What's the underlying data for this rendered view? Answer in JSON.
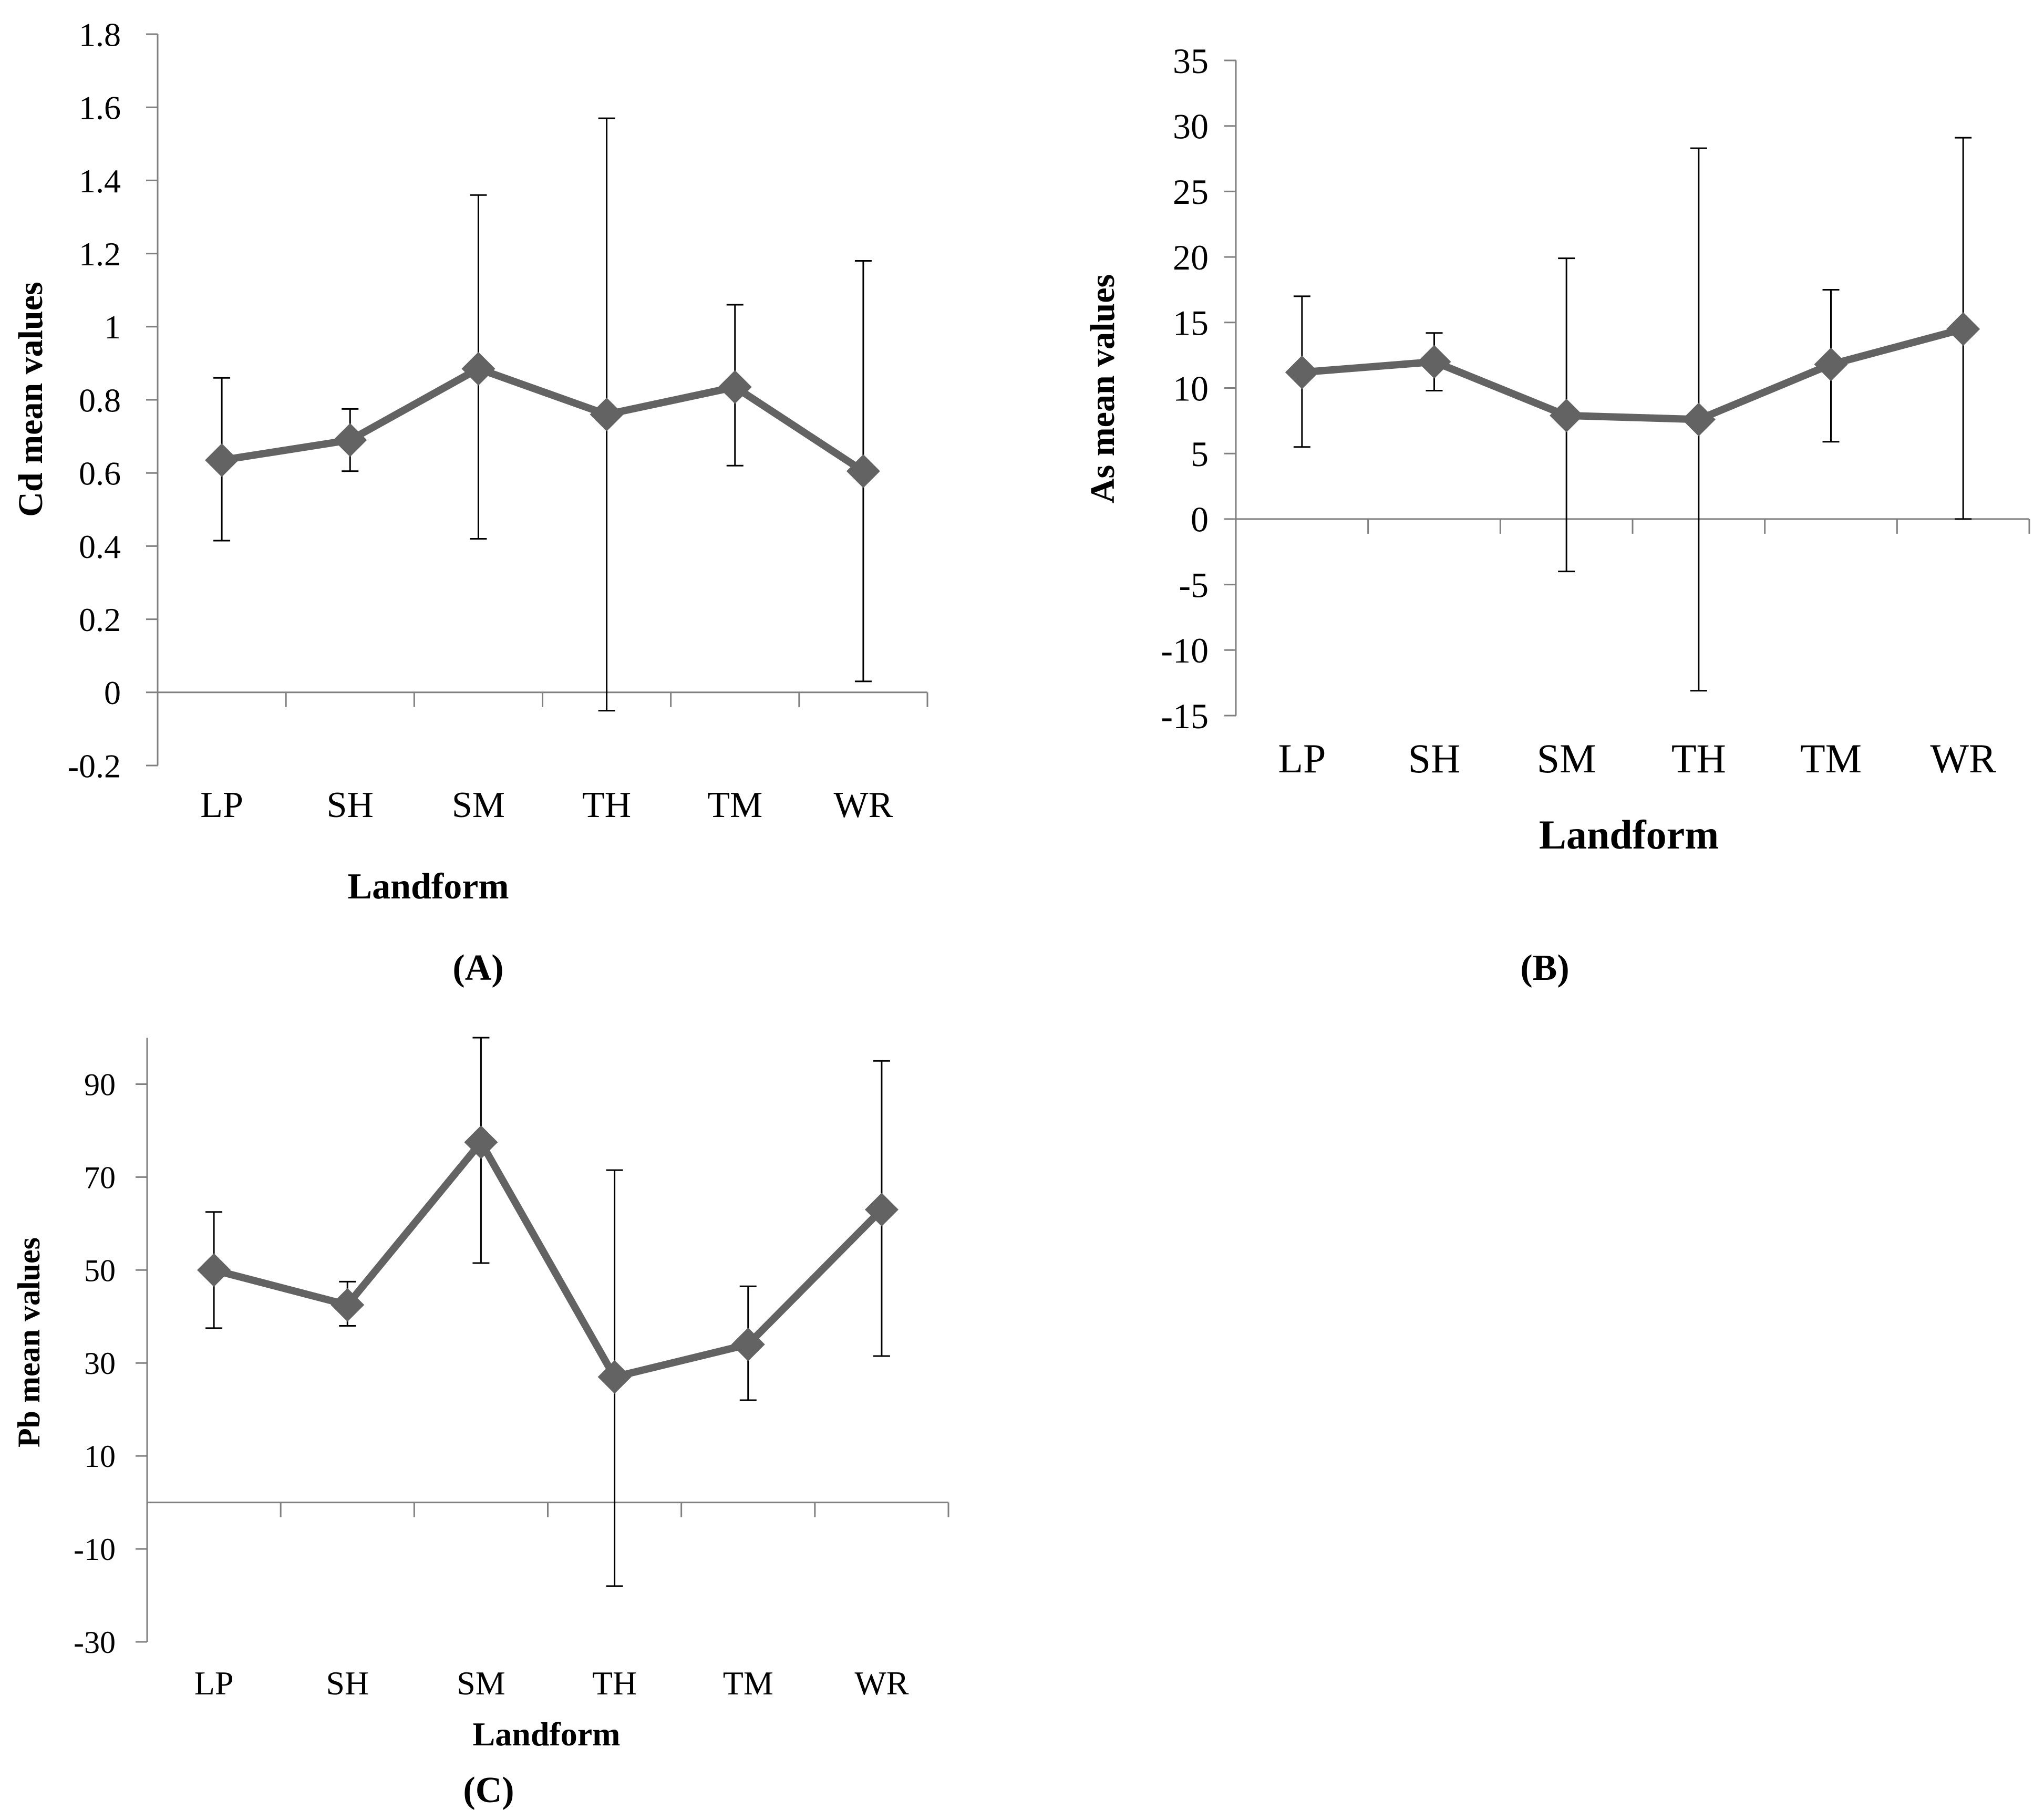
{
  "colors": {
    "series": "#636363",
    "axis": "#808080",
    "errorbar": "#000000",
    "text": "#000000"
  },
  "chart_data": [
    {
      "id": "A",
      "panel_label": "(A)",
      "type": "line",
      "categories": [
        "LP",
        "SH",
        "SM",
        "TH",
        "TM",
        "WR"
      ],
      "values": [
        0.635,
        0.69,
        0.885,
        0.76,
        0.835,
        0.605
      ],
      "error_low": [
        0.415,
        0.605,
        0.42,
        -0.05,
        0.62,
        0.03
      ],
      "error_high": [
        0.86,
        0.775,
        1.36,
        1.57,
        1.06,
        1.18
      ],
      "xlabel": "Landform",
      "ylabel": "Cd mean values",
      "ylim": [
        -0.2,
        1.8
      ],
      "yticks": [
        -0.2,
        0,
        0.2,
        0.4,
        0.6,
        0.8,
        1,
        1.2,
        1.4,
        1.6,
        1.8
      ],
      "ytick_labels": [
        "-0.2",
        "0",
        "0.2",
        "0.4",
        "0.6",
        "0.8",
        "1",
        "1.2",
        "1.4",
        "1.6",
        "1.8"
      ],
      "marker": "diamond",
      "grid": false,
      "legend": false
    },
    {
      "id": "B",
      "panel_label": "(B)",
      "type": "line",
      "categories": [
        "LP",
        "SH",
        "SM",
        "TH",
        "TM",
        "WR"
      ],
      "values": [
        11.2,
        12.0,
        7.9,
        7.6,
        11.8,
        14.5
      ],
      "error_low": [
        5.5,
        9.8,
        -4.0,
        -13.1,
        5.9,
        0.0
      ],
      "error_high": [
        17.0,
        14.2,
        19.9,
        28.3,
        17.5,
        29.1
      ],
      "xlabel": "Landform",
      "ylabel": "As mean values",
      "ylim": [
        -15,
        35
      ],
      "yticks": [
        -15,
        -10,
        -5,
        0,
        5,
        10,
        15,
        20,
        25,
        30,
        35
      ],
      "ytick_labels": [
        "-15",
        "-10",
        "-5",
        "0",
        "5",
        "10",
        "15",
        "20",
        "25",
        "30",
        "35"
      ],
      "marker": "diamond",
      "grid": false,
      "legend": false
    },
    {
      "id": "C",
      "panel_label": "(C)",
      "type": "line",
      "categories": [
        "LP",
        "SH",
        "SM",
        "TH",
        "TM",
        "WR"
      ],
      "values": [
        50,
        42.5,
        77.5,
        27,
        34,
        63
      ],
      "error_low": [
        37.5,
        38,
        51.5,
        -18,
        22,
        31.5
      ],
      "error_high": [
        62.5,
        47.5,
        100,
        71.5,
        46.5,
        95
      ],
      "xlabel": "Landform",
      "ylabel": "Pb mean values",
      "ylim": [
        -30,
        100
      ],
      "yticks": [
        -30,
        -10,
        10,
        30,
        50,
        70,
        90
      ],
      "ytick_labels": [
        "-30",
        "-10",
        "10",
        "30",
        "50",
        "70",
        "90"
      ],
      "marker": "diamond",
      "grid": false,
      "legend": false
    }
  ]
}
